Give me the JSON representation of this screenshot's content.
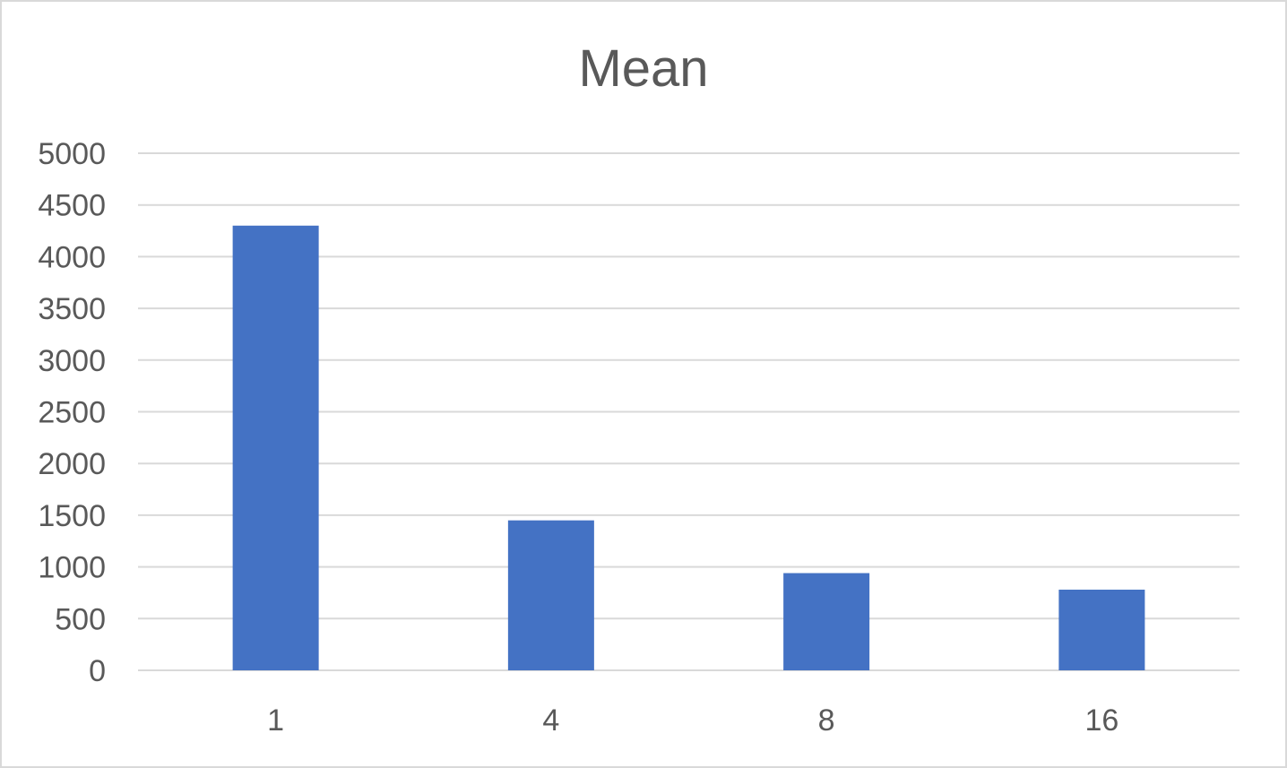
{
  "chart_data": {
    "type": "bar",
    "title": "Mean",
    "xlabel": "",
    "ylabel": "",
    "categories": [
      "1",
      "4",
      "8",
      "16"
    ],
    "values": [
      4300,
      1450,
      940,
      780
    ],
    "ylim": [
      0,
      5000
    ],
    "yticks": [
      "0",
      "500",
      "1000",
      "1500",
      "2000",
      "2500",
      "3000",
      "3500",
      "4000",
      "4500",
      "5000"
    ],
    "grid": true,
    "legend": "none",
    "bar_color": "#4472c4",
    "grid_color": "#d9d9d9",
    "text_color": "#595959"
  }
}
